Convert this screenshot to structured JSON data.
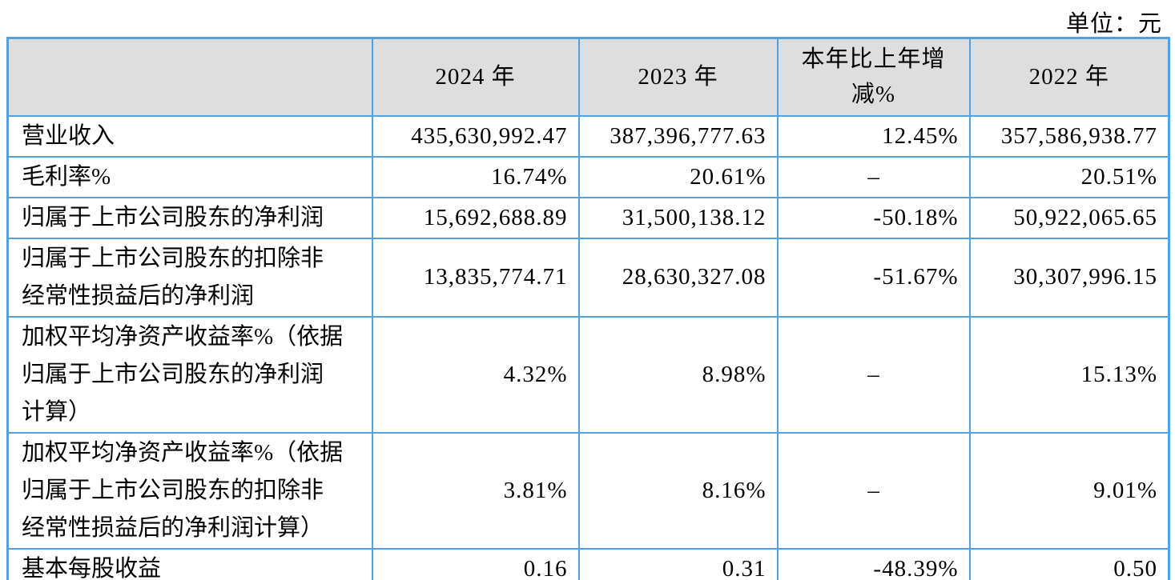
{
  "unit_label": "单位：元",
  "colors": {
    "table_border": "#55a0dc",
    "header_background": "#dedede",
    "text": "#000000"
  },
  "table": {
    "dash": "–",
    "columns": [
      "",
      "2024 年",
      "2023 年",
      "本年比上年增\n减%",
      "2022 年"
    ],
    "rows": [
      {
        "label": "营业收入",
        "values": [
          "435,630,992.47",
          "387,396,777.63",
          "12.45%",
          "357,586,938.77"
        ]
      },
      {
        "label": "毛利率%",
        "values": [
          "16.74%",
          "20.61%",
          "–",
          "20.51%"
        ]
      },
      {
        "label": "归属于上市公司股东的净利润",
        "values": [
          "15,692,688.89",
          "31,500,138.12",
          "-50.18%",
          "50,922,065.65"
        ]
      },
      {
        "label": "归属于上市公司股东的扣除非\n经常性损益后的净利润",
        "values": [
          "13,835,774.71",
          "28,630,327.08",
          "-51.67%",
          "30,307,996.15"
        ]
      },
      {
        "label": "加权平均净资产收益率%（依据\n归属于上市公司股东的净利润\n计算）",
        "values": [
          "4.32%",
          "8.98%",
          "–",
          "15.13%"
        ]
      },
      {
        "label": "加权平均净资产收益率%（依据\n归属于上市公司股东的扣除非\n经常性损益后的净利润计算）",
        "values": [
          "3.81%",
          "8.16%",
          "–",
          "9.01%"
        ]
      },
      {
        "label": "基本每股收益",
        "values": [
          "0.16",
          "0.31",
          "-48.39%",
          "0.50"
        ]
      }
    ]
  }
}
